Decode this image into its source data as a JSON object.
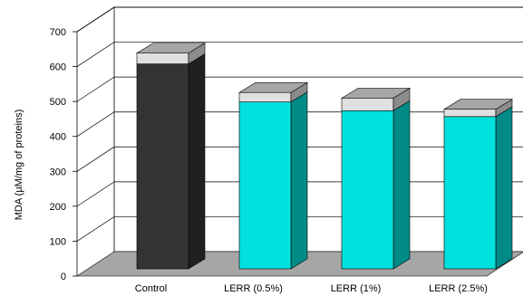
{
  "chart_data": {
    "type": "bar",
    "title": "",
    "xlabel": "",
    "ylabel": "MDA (µM/mg of proteins)",
    "ylim": [
      0,
      700
    ],
    "yticks": [
      0,
      100,
      200,
      300,
      400,
      500,
      600,
      700
    ],
    "categories": [
      "Control",
      "LERR (0.5%)",
      "LERR (1%)",
      "LERR (2.5%)"
    ],
    "values": [
      587,
      478,
      453,
      436
    ],
    "errors": [
      31,
      27,
      36,
      21
    ],
    "bar_colors": [
      "#333333",
      "#00E0DC",
      "#00E0DC",
      "#00E0DC"
    ],
    "error_cap_color": "#E0E0E0",
    "style": "3d",
    "grid": true,
    "legend": "none"
  }
}
